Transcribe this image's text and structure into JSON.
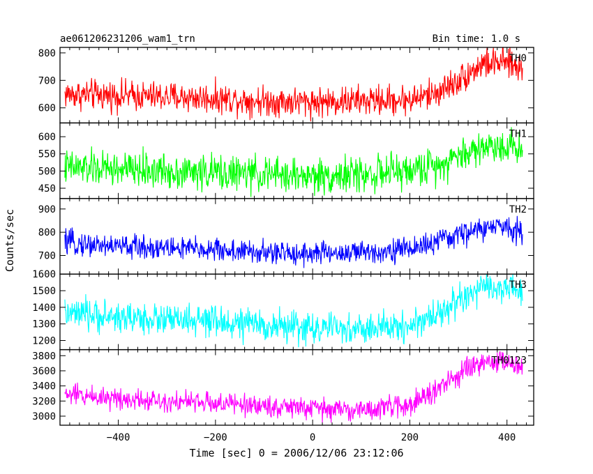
{
  "header": {
    "left": "ae061206231206_wam1_trn",
    "right": "Bin time: 1.0 s"
  },
  "axes": {
    "xlabel": "Time [sec] 0 = 2006/12/06 23:12:06",
    "ylabel": "Counts/sec"
  },
  "chart_data": {
    "type": "line",
    "title": "ae061206231206_wam1_trn",
    "subtitle": "Bin time: 1.0 s",
    "xlabel": "Time [sec] 0 = 2006/12/06 23:12:06",
    "ylabel": "Counts/sec",
    "xlim": [
      -520,
      455
    ],
    "x_range": [
      -510,
      432
    ],
    "x_ticks": [
      -400,
      -200,
      0,
      200,
      400
    ],
    "x_tick_labels": [
      "−400",
      "−200",
      "0",
      "200",
      "400"
    ],
    "grid": false,
    "panels": [
      {
        "name": "TH0",
        "color": "#ff0000",
        "ylim": [
          545,
          820
        ],
        "yticks": [
          600,
          700,
          800
        ],
        "ytick_labels": [
          "600",
          "700",
          "800"
        ],
        "trend": [
          [
            -510,
            650
          ],
          [
            -400,
            645
          ],
          [
            -200,
            635
          ],
          [
            -100,
            625
          ],
          [
            0,
            622
          ],
          [
            100,
            625
          ],
          [
            200,
            630
          ],
          [
            250,
            650
          ],
          [
            300,
            700
          ],
          [
            350,
            760
          ],
          [
            400,
            765
          ],
          [
            432,
            740
          ]
        ],
        "noise": 32
      },
      {
        "name": "TH1",
        "color": "#00ff00",
        "ylim": [
          420,
          640
        ],
        "yticks": [
          450,
          500,
          550,
          600
        ],
        "ytick_labels": [
          "450",
          "500",
          "550",
          "600"
        ],
        "trend": [
          [
            -510,
            510
          ],
          [
            -400,
            505
          ],
          [
            -200,
            495
          ],
          [
            0,
            485
          ],
          [
            100,
            490
          ],
          [
            200,
            500
          ],
          [
            260,
            520
          ],
          [
            300,
            545
          ],
          [
            350,
            570
          ],
          [
            400,
            575
          ],
          [
            432,
            565
          ]
        ],
        "noise": 30
      },
      {
        "name": "TH2",
        "color": "#0000ff",
        "ylim": [
          620,
          945
        ],
        "yticks": [
          700,
          800,
          900
        ],
        "ytick_labels": [
          "700",
          "800",
          "900"
        ],
        "trend": [
          [
            -510,
            755
          ],
          [
            -400,
            740
          ],
          [
            -200,
            725
          ],
          [
            -100,
            710
          ],
          [
            0,
            710
          ],
          [
            100,
            712
          ],
          [
            200,
            730
          ],
          [
            260,
            760
          ],
          [
            300,
            790
          ],
          [
            350,
            815
          ],
          [
            400,
            825
          ],
          [
            432,
            805
          ]
        ],
        "noise": 30
      },
      {
        "name": "TH3",
        "color": "#00ffff",
        "ylim": [
          1145,
          1600
        ],
        "yticks": [
          1200,
          1300,
          1400,
          1500,
          1600
        ],
        "ytick_labels": [
          "1200",
          "1300",
          "1400",
          "1500",
          "1600"
        ],
        "trend": [
          [
            -510,
            1360
          ],
          [
            -400,
            1340
          ],
          [
            -200,
            1310
          ],
          [
            0,
            1275
          ],
          [
            100,
            1265
          ],
          [
            200,
            1290
          ],
          [
            250,
            1350
          ],
          [
            300,
            1440
          ],
          [
            350,
            1510
          ],
          [
            400,
            1520
          ],
          [
            432,
            1480
          ]
        ],
        "noise": 55
      },
      {
        "name": "TH0123",
        "color": "#ff00ff",
        "ylim": [
          2880,
          3880
        ],
        "yticks": [
          3000,
          3200,
          3400,
          3600,
          3800
        ],
        "ytick_labels": [
          "3000",
          "3200",
          "3400",
          "3600",
          "3800"
        ],
        "trend": [
          [
            -510,
            3290
          ],
          [
            -400,
            3240
          ],
          [
            -200,
            3170
          ],
          [
            0,
            3100
          ],
          [
            100,
            3080
          ],
          [
            200,
            3150
          ],
          [
            250,
            3320
          ],
          [
            300,
            3550
          ],
          [
            350,
            3700
          ],
          [
            400,
            3730
          ],
          [
            432,
            3640
          ]
        ],
        "noise": 85
      }
    ]
  }
}
